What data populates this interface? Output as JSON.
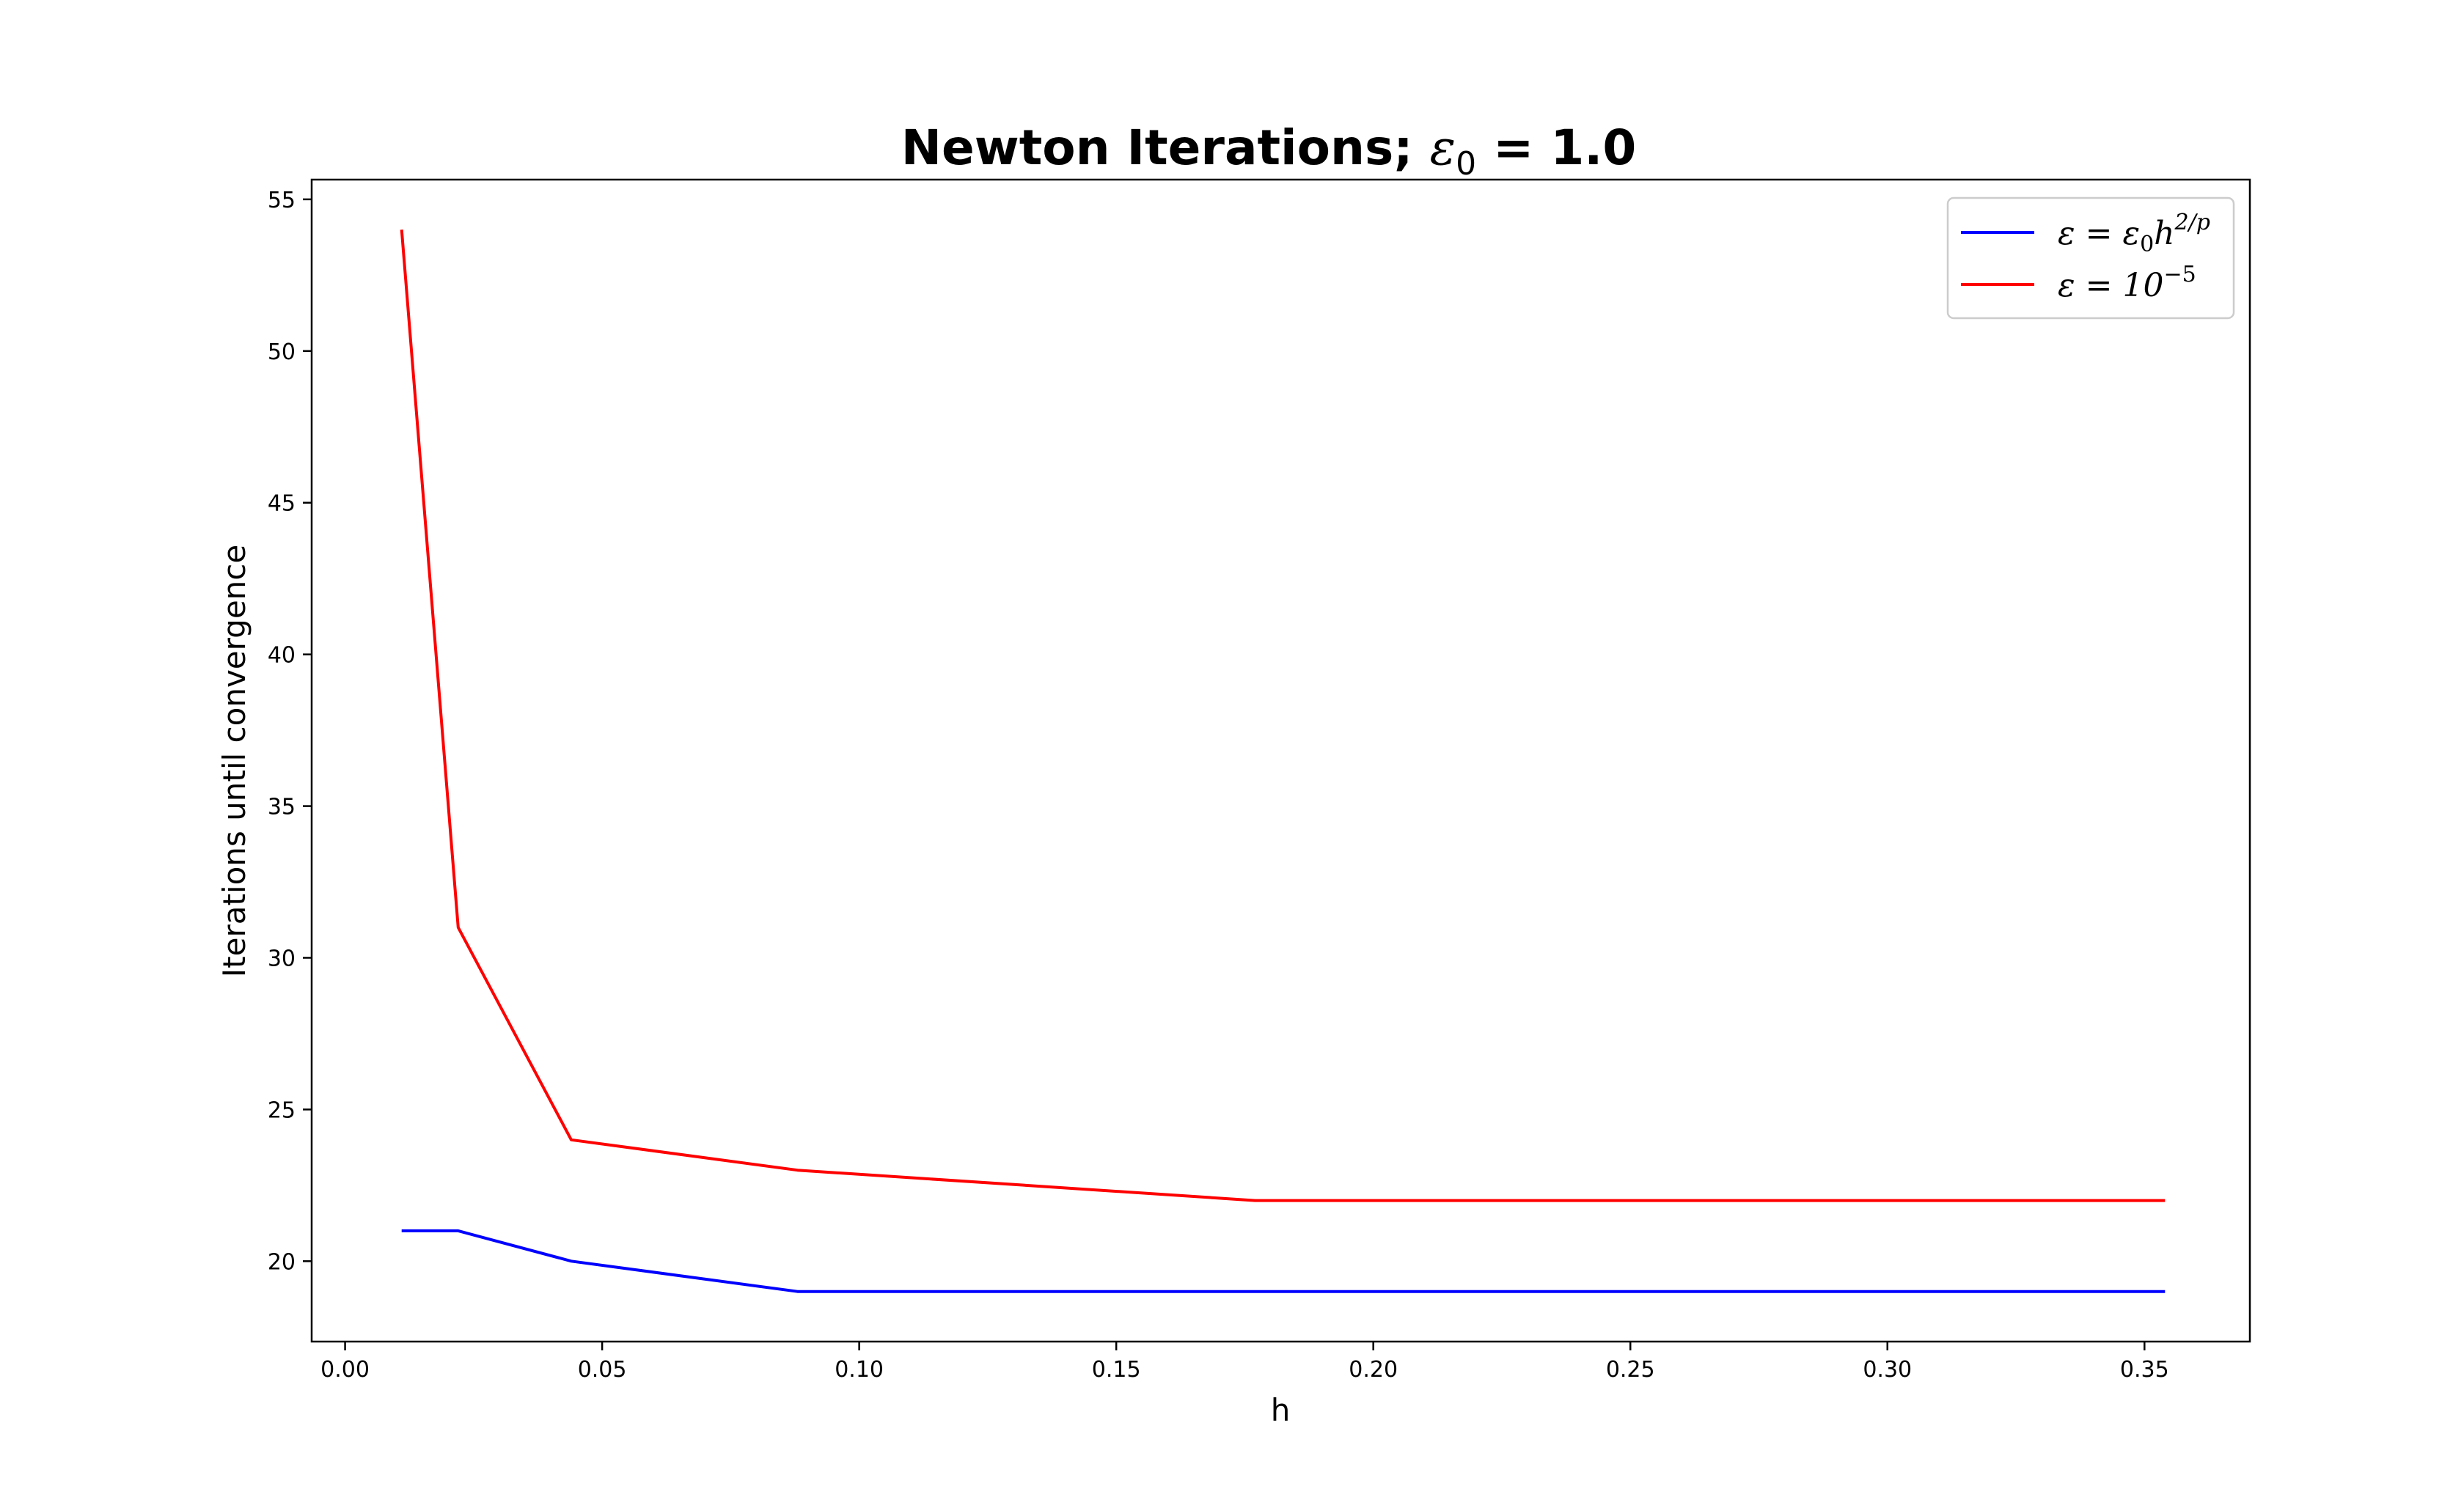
{
  "chart_data": {
    "type": "line",
    "title": {
      "text": "Newton Iterations; ",
      "math_symbol": "ε",
      "math_subscript": "0",
      "math_rest": " = 1.0"
    },
    "xlabel": "h",
    "ylabel": "Iterations until convergence",
    "xlim": [
      -0.0065,
      0.3705
    ],
    "ylim": [
      17.35,
      55.65
    ],
    "xticks": [
      0.0,
      0.05,
      0.1,
      0.15,
      0.2,
      0.25,
      0.3,
      0.35
    ],
    "xtick_labels": [
      "0.00",
      "0.05",
      "0.10",
      "0.15",
      "0.20",
      "0.25",
      "0.30",
      "0.35"
    ],
    "yticks": [
      20,
      25,
      30,
      35,
      40,
      45,
      50,
      55
    ],
    "ytick_labels": [
      "20",
      "25",
      "30",
      "35",
      "40",
      "45",
      "50",
      "55"
    ],
    "grid": false,
    "legend_position": "top-right",
    "series": [
      {
        "name": "ε = ε₀h^(2/p)",
        "legend": {
          "lhs": "ε = ε",
          "sub": "0",
          "mid": "h",
          "sup": "2/p"
        },
        "color": "#0000ff",
        "x": [
          0.011,
          0.022,
          0.044,
          0.088,
          0.177,
          0.354
        ],
        "y": [
          21,
          21,
          20,
          19,
          19,
          19
        ]
      },
      {
        "name": "ε = 10^(−5)",
        "legend": {
          "lhs": "ε = 10",
          "sup": "−5"
        },
        "color": "#ff0000",
        "x": [
          0.011,
          0.022,
          0.044,
          0.088,
          0.177,
          0.354
        ],
        "y": [
          54,
          31,
          24,
          23,
          22,
          22
        ]
      }
    ]
  }
}
